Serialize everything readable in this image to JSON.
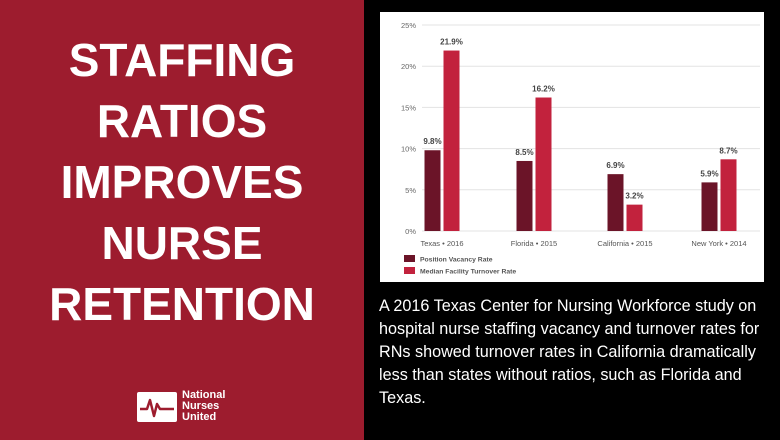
{
  "headline": {
    "lines": [
      "STAFFING",
      "RATIOS",
      "IMPROVES",
      "NURSE",
      "RETENTION"
    ]
  },
  "logo": {
    "lines": [
      "National",
      "Nurses",
      "United"
    ],
    "icon": "nnu-logo-mark-icon"
  },
  "caption": "A 2016 Texas Center for Nursing Workforce study on hospital nurse staffing vacancy and turnover rates for RNs showed turnover rates in California dramatically less than states without ratios, such as Florida and Texas.",
  "colors": {
    "panel": "#9d1c2e",
    "vacancy": "#6b1428",
    "turnover": "#c2223d",
    "background": "#000000"
  },
  "chart_data": {
    "type": "bar",
    "categories": [
      "Texas • 2016",
      "Florida • 2015",
      "California • 2015",
      "New York • 2014"
    ],
    "series": [
      {
        "name": "Position Vacancy Rate",
        "values": [
          9.8,
          8.5,
          6.9,
          5.9
        ],
        "labels": [
          "9.8%",
          "8.5%",
          "6.9%",
          "5.9%"
        ],
        "color": "#6b1428"
      },
      {
        "name": "Median Facility Turnover Rate",
        "values": [
          21.9,
          16.2,
          3.2,
          8.7
        ],
        "labels": [
          "21.9%",
          "16.2%",
          "3.2%",
          "8.7%"
        ],
        "color": "#c2223d"
      }
    ],
    "ylim": [
      0,
      25
    ],
    "yticks": [
      "0%",
      "5%",
      "10%",
      "15%",
      "20%",
      "25%"
    ],
    "grid": true,
    "legend": "bottom-left",
    "title": "",
    "xlabel": "",
    "ylabel": ""
  }
}
